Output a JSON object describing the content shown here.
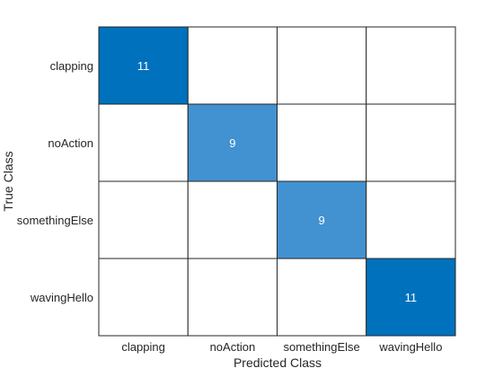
{
  "chart_data": {
    "type": "heatmap",
    "subtype": "confusion-matrix",
    "xlabel": "Predicted Class",
    "ylabel": "True Class",
    "classes": [
      "clapping",
      "noAction",
      "somethingElse",
      "wavingHello"
    ],
    "matrix": [
      [
        11,
        0,
        0,
        0
      ],
      [
        0,
        9,
        0,
        0
      ],
      [
        0,
        0,
        9,
        0
      ],
      [
        0,
        0,
        0,
        11
      ]
    ],
    "zero_cells_blank": true,
    "colors": {
      "max": "#0072bd",
      "min": "#ffffff",
      "border": "#262626",
      "value_text": "#ffffff"
    }
  }
}
